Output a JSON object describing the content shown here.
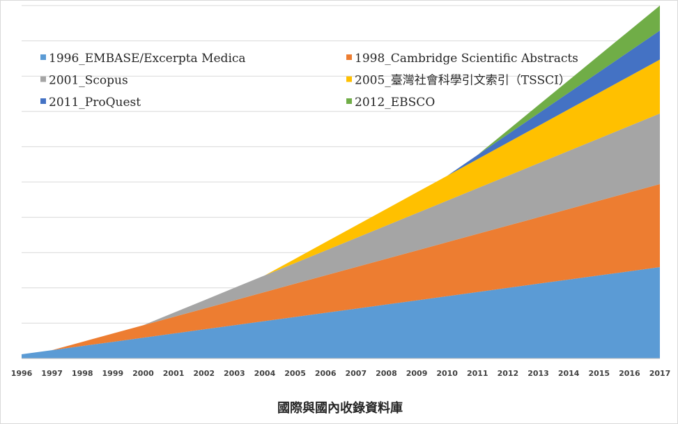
{
  "chart_data": {
    "type": "area",
    "stacked": true,
    "title": "國際與國內收錄資料庫",
    "xlabel": "",
    "ylabel": "",
    "x": [
      "1996",
      "1997",
      "1998",
      "1999",
      "2000",
      "2001",
      "2002",
      "2003",
      "2004",
      "2005",
      "2006",
      "2007",
      "2008",
      "2009",
      "2010",
      "2011",
      "2012",
      "2013",
      "2014",
      "2015",
      "2016",
      "2017"
    ],
    "ylim": [
      0,
      85
    ],
    "grid": true,
    "legend_position": "top",
    "series": [
      {
        "name": "1996_EMBASE/Excerpta Medica",
        "color": "#5b9bd5",
        "values": [
          1,
          2,
          3,
          4,
          5,
          6,
          7,
          8,
          9,
          10,
          11,
          12,
          13,
          14,
          15,
          16,
          17,
          18,
          19,
          20,
          21,
          22
        ]
      },
      {
        "name": "1998_Cambridge Scientific Abstracts",
        "color": "#ed7d31",
        "values": [
          0,
          0,
          1,
          2,
          3,
          4,
          5,
          6,
          7,
          8,
          9,
          10,
          11,
          12,
          13,
          14,
          15,
          16,
          17,
          18,
          19,
          20
        ]
      },
      {
        "name": "2001_Scopus",
        "color": "#a5a5a5",
        "values": [
          0,
          0,
          0,
          0,
          0,
          1,
          2,
          3,
          4,
          5,
          6,
          7,
          8,
          9,
          10,
          11,
          12,
          13,
          14,
          15,
          16,
          17
        ]
      },
      {
        "name": "2005_臺灣社會科學引文索引（TSSCI）",
        "color": "#ffc000",
        "values": [
          0,
          0,
          0,
          0,
          0,
          0,
          0,
          0,
          0,
          1,
          2,
          3,
          4,
          5,
          6,
          7,
          8,
          9,
          10,
          11,
          12,
          13
        ]
      },
      {
        "name": "2011_ProQuest",
        "color": "#4472c4",
        "values": [
          0,
          0,
          0,
          0,
          0,
          0,
          0,
          0,
          0,
          0,
          0,
          0,
          0,
          0,
          0,
          1,
          2,
          3,
          4,
          5,
          6,
          7
        ]
      },
      {
        "name": "2012_EBSCO",
        "color": "#70ad47",
        "values": [
          0,
          0,
          0,
          0,
          0,
          0,
          0,
          0,
          0,
          0,
          0,
          0,
          0,
          0,
          0,
          0,
          1,
          2,
          3,
          4,
          5,
          6
        ]
      }
    ]
  }
}
